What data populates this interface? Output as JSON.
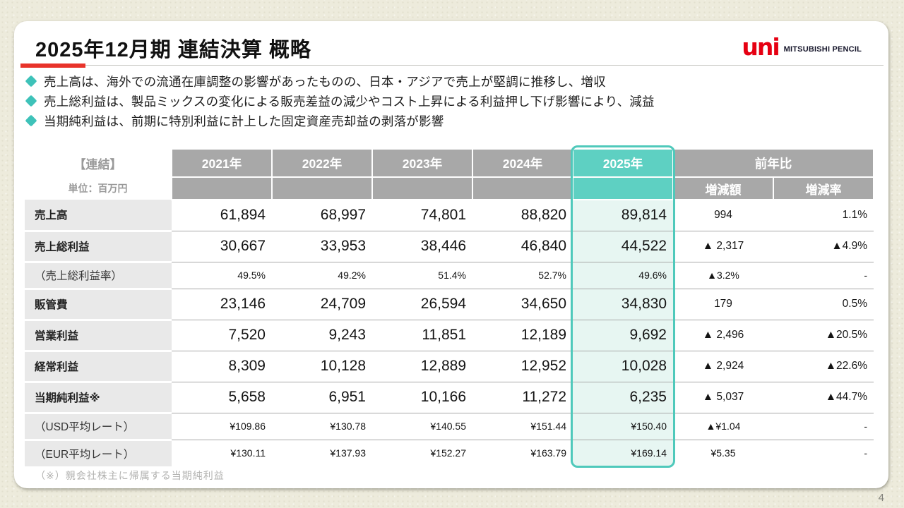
{
  "slide": {
    "title": "2025年12月期 連結決算 概略",
    "page_number": "4",
    "footnote": "（※）親会社株主に帰属する当期純利益"
  },
  "logo": {
    "brand": "uni",
    "company": "MITSUBISHI PENCIL"
  },
  "bullets": [
    "売上高は、海外での流通在庫調整の影響があったものの、日本・アジアで売上が堅調に推移し、増収",
    "売上総利益は、製品ミックスの変化による販売差益の減少やコスト上昇による利益押し下げ影響により、減益",
    "当期純利益は、前期に特別利益に計上した固定資産売却益の剥落が影響"
  ],
  "table": {
    "corner_label": "【連結】",
    "unit_label": "単位：百万円",
    "year_headers": [
      "2021年",
      "2022年",
      "2023年",
      "2024年",
      "2025年"
    ],
    "highlighted_year": "2025年",
    "yoy_header": "前年比",
    "yoy_subheaders": [
      "増減額",
      "増減率"
    ],
    "rows": [
      {
        "label": "売上高",
        "emphasis": "major",
        "values": [
          "61,894",
          "68,997",
          "74,801",
          "88,820",
          "89,814"
        ],
        "change_amount": "994",
        "change_rate": "1.1%"
      },
      {
        "label": "売上総利益",
        "emphasis": "major",
        "values": [
          "30,667",
          "33,953",
          "38,446",
          "46,840",
          "44,522"
        ],
        "change_amount": "▲ 2,317",
        "change_rate": "▲4.9%"
      },
      {
        "label": "（売上総利益率）",
        "emphasis": "minor",
        "values": [
          "49.5%",
          "49.2%",
          "51.4%",
          "52.7%",
          "49.6%"
        ],
        "change_amount": "▲3.2%",
        "change_rate": "-"
      },
      {
        "label": "販管費",
        "emphasis": "major",
        "values": [
          "23,146",
          "24,709",
          "26,594",
          "34,650",
          "34,830"
        ],
        "change_amount": "179",
        "change_rate": "0.5%"
      },
      {
        "label": "営業利益",
        "emphasis": "major",
        "values": [
          "7,520",
          "9,243",
          "11,851",
          "12,189",
          "9,692"
        ],
        "change_amount": "▲ 2,496",
        "change_rate": "▲20.5%"
      },
      {
        "label": "経常利益",
        "emphasis": "major",
        "values": [
          "8,309",
          "10,128",
          "12,889",
          "12,952",
          "10,028"
        ],
        "change_amount": "▲ 2,924",
        "change_rate": "▲22.6%"
      },
      {
        "label": "当期純利益※",
        "emphasis": "major",
        "values": [
          "5,658",
          "6,951",
          "10,166",
          "11,272",
          "6,235"
        ],
        "change_amount": "▲ 5,037",
        "change_rate": "▲44.7%"
      },
      {
        "label": "（USD平均レート）",
        "emphasis": "minor",
        "values": [
          "¥109.86",
          "¥130.78",
          "¥140.55",
          "¥151.44",
          "¥150.40"
        ],
        "change_amount": "▲¥1.04",
        "change_rate": "-"
      },
      {
        "label": "（EUR平均レート）",
        "emphasis": "minor",
        "values": [
          "¥130.11",
          "¥137.93",
          "¥152.27",
          "¥163.79",
          "¥169.14"
        ],
        "change_amount": "¥5.35",
        "change_rate": "-"
      }
    ]
  },
  "colors": {
    "brand_red": "#e60012",
    "accent_red": "#e8332a",
    "highlight_teal": "#4fc9bb",
    "highlight_fill": "#e7f6f2",
    "header_gray": "#a8a8a8",
    "bullet_teal": "#3ec2b9"
  }
}
